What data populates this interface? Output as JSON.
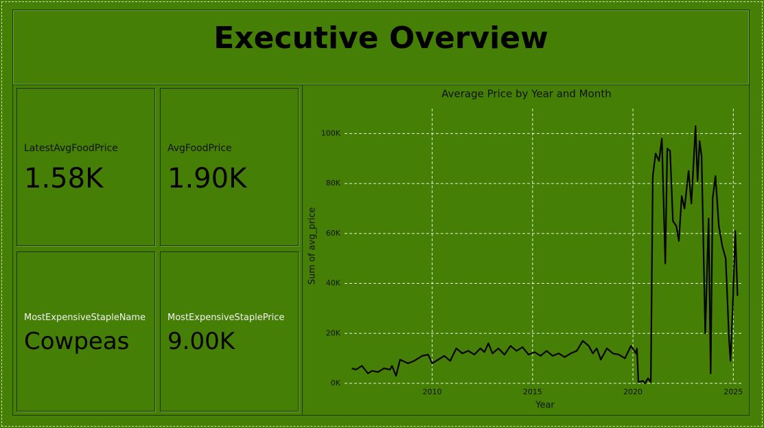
{
  "header": {
    "title": "Executive Overview"
  },
  "cards": [
    {
      "label": "LatestAvgFoodPrice",
      "value": "1.58K"
    },
    {
      "label": "AvgFoodPrice",
      "value": "1.90K"
    },
    {
      "label": "MostExpensiveStapleName",
      "value": "Cowpeas"
    },
    {
      "label": "MostExpensiveStaplePrice",
      "value": "9.00K"
    }
  ],
  "chart_data": {
    "type": "line",
    "title": "Average Price by Year and Month",
    "x_label": "Year",
    "y_label": "Sum of avg_price",
    "color": "#000000",
    "grid": true,
    "x": [
      2006.0,
      2006.2,
      2006.5,
      2006.8,
      2007.0,
      2007.3,
      2007.6,
      2007.9,
      2008.0,
      2008.2,
      2008.4,
      2008.8,
      2009.1,
      2009.5,
      2009.8,
      2010.0,
      2010.3,
      2010.6,
      2010.9,
      2011.2,
      2011.5,
      2011.8,
      2012.1,
      2012.4,
      2012.6,
      2012.8,
      2013.0,
      2013.3,
      2013.6,
      2013.9,
      2014.2,
      2014.5,
      2014.8,
      2015.1,
      2015.4,
      2015.7,
      2016.0,
      2016.3,
      2016.6,
      2016.9,
      2017.2,
      2017.5,
      2017.8,
      2018.0,
      2018.2,
      2018.4,
      2018.7,
      2019.0,
      2019.3,
      2019.6,
      2019.9,
      2020.15,
      2020.2,
      2020.27,
      2020.5,
      2020.6,
      2020.75,
      2020.89,
      2020.99,
      2021.13,
      2021.3,
      2021.44,
      2021.61,
      2021.71,
      2021.85,
      2021.99,
      2022.16,
      2022.29,
      2022.43,
      2022.57,
      2022.77,
      2022.91,
      2023.12,
      2023.22,
      2023.32,
      2023.42,
      2023.6,
      2023.77,
      2023.87,
      2023.97,
      2024.11,
      2024.28,
      2024.45,
      2024.62,
      2024.79,
      2024.86,
      2024.97,
      2025.1,
      2025.21
    ],
    "values": [
      6000,
      5500,
      7000,
      4000,
      5000,
      4500,
      6000,
      5500,
      7000,
      3000,
      9500,
      8000,
      9000,
      11000,
      11500,
      8000,
      9500,
      11000,
      9000,
      14000,
      12000,
      13000,
      11500,
      14000,
      12500,
      16000,
      12000,
      14000,
      11500,
      15000,
      13000,
      14500,
      11500,
      12500,
      11000,
      13000,
      11000,
      12000,
      10500,
      12000,
      13000,
      17000,
      15000,
      12000,
      14000,
      9500,
      14000,
      12000,
      11500,
      10000,
      15000,
      12000,
      14000,
      500,
      1000,
      0,
      2000,
      500,
      83000,
      92000,
      89000,
      98000,
      48000,
      94000,
      93000,
      65000,
      63000,
      57000,
      75000,
      70000,
      85000,
      72000,
      103000,
      81000,
      97000,
      91000,
      20000,
      66000,
      4000,
      74000,
      83000,
      63000,
      55000,
      50000,
      17000,
      9000,
      30000,
      61000,
      35000
    ],
    "xlim": [
      2004.2,
      2025.4
    ],
    "xticks": [
      2010,
      2015,
      2020,
      2025
    ],
    "ylim": [
      0,
      110000
    ],
    "yticks": [
      {
        "value": 0,
        "label": "0K"
      },
      {
        "value": 20000,
        "label": "20K"
      },
      {
        "value": 40000,
        "label": "40K"
      },
      {
        "value": 60000,
        "label": "60K"
      },
      {
        "value": 80000,
        "label": "80K"
      },
      {
        "value": 100000,
        "label": "100K"
      }
    ]
  }
}
